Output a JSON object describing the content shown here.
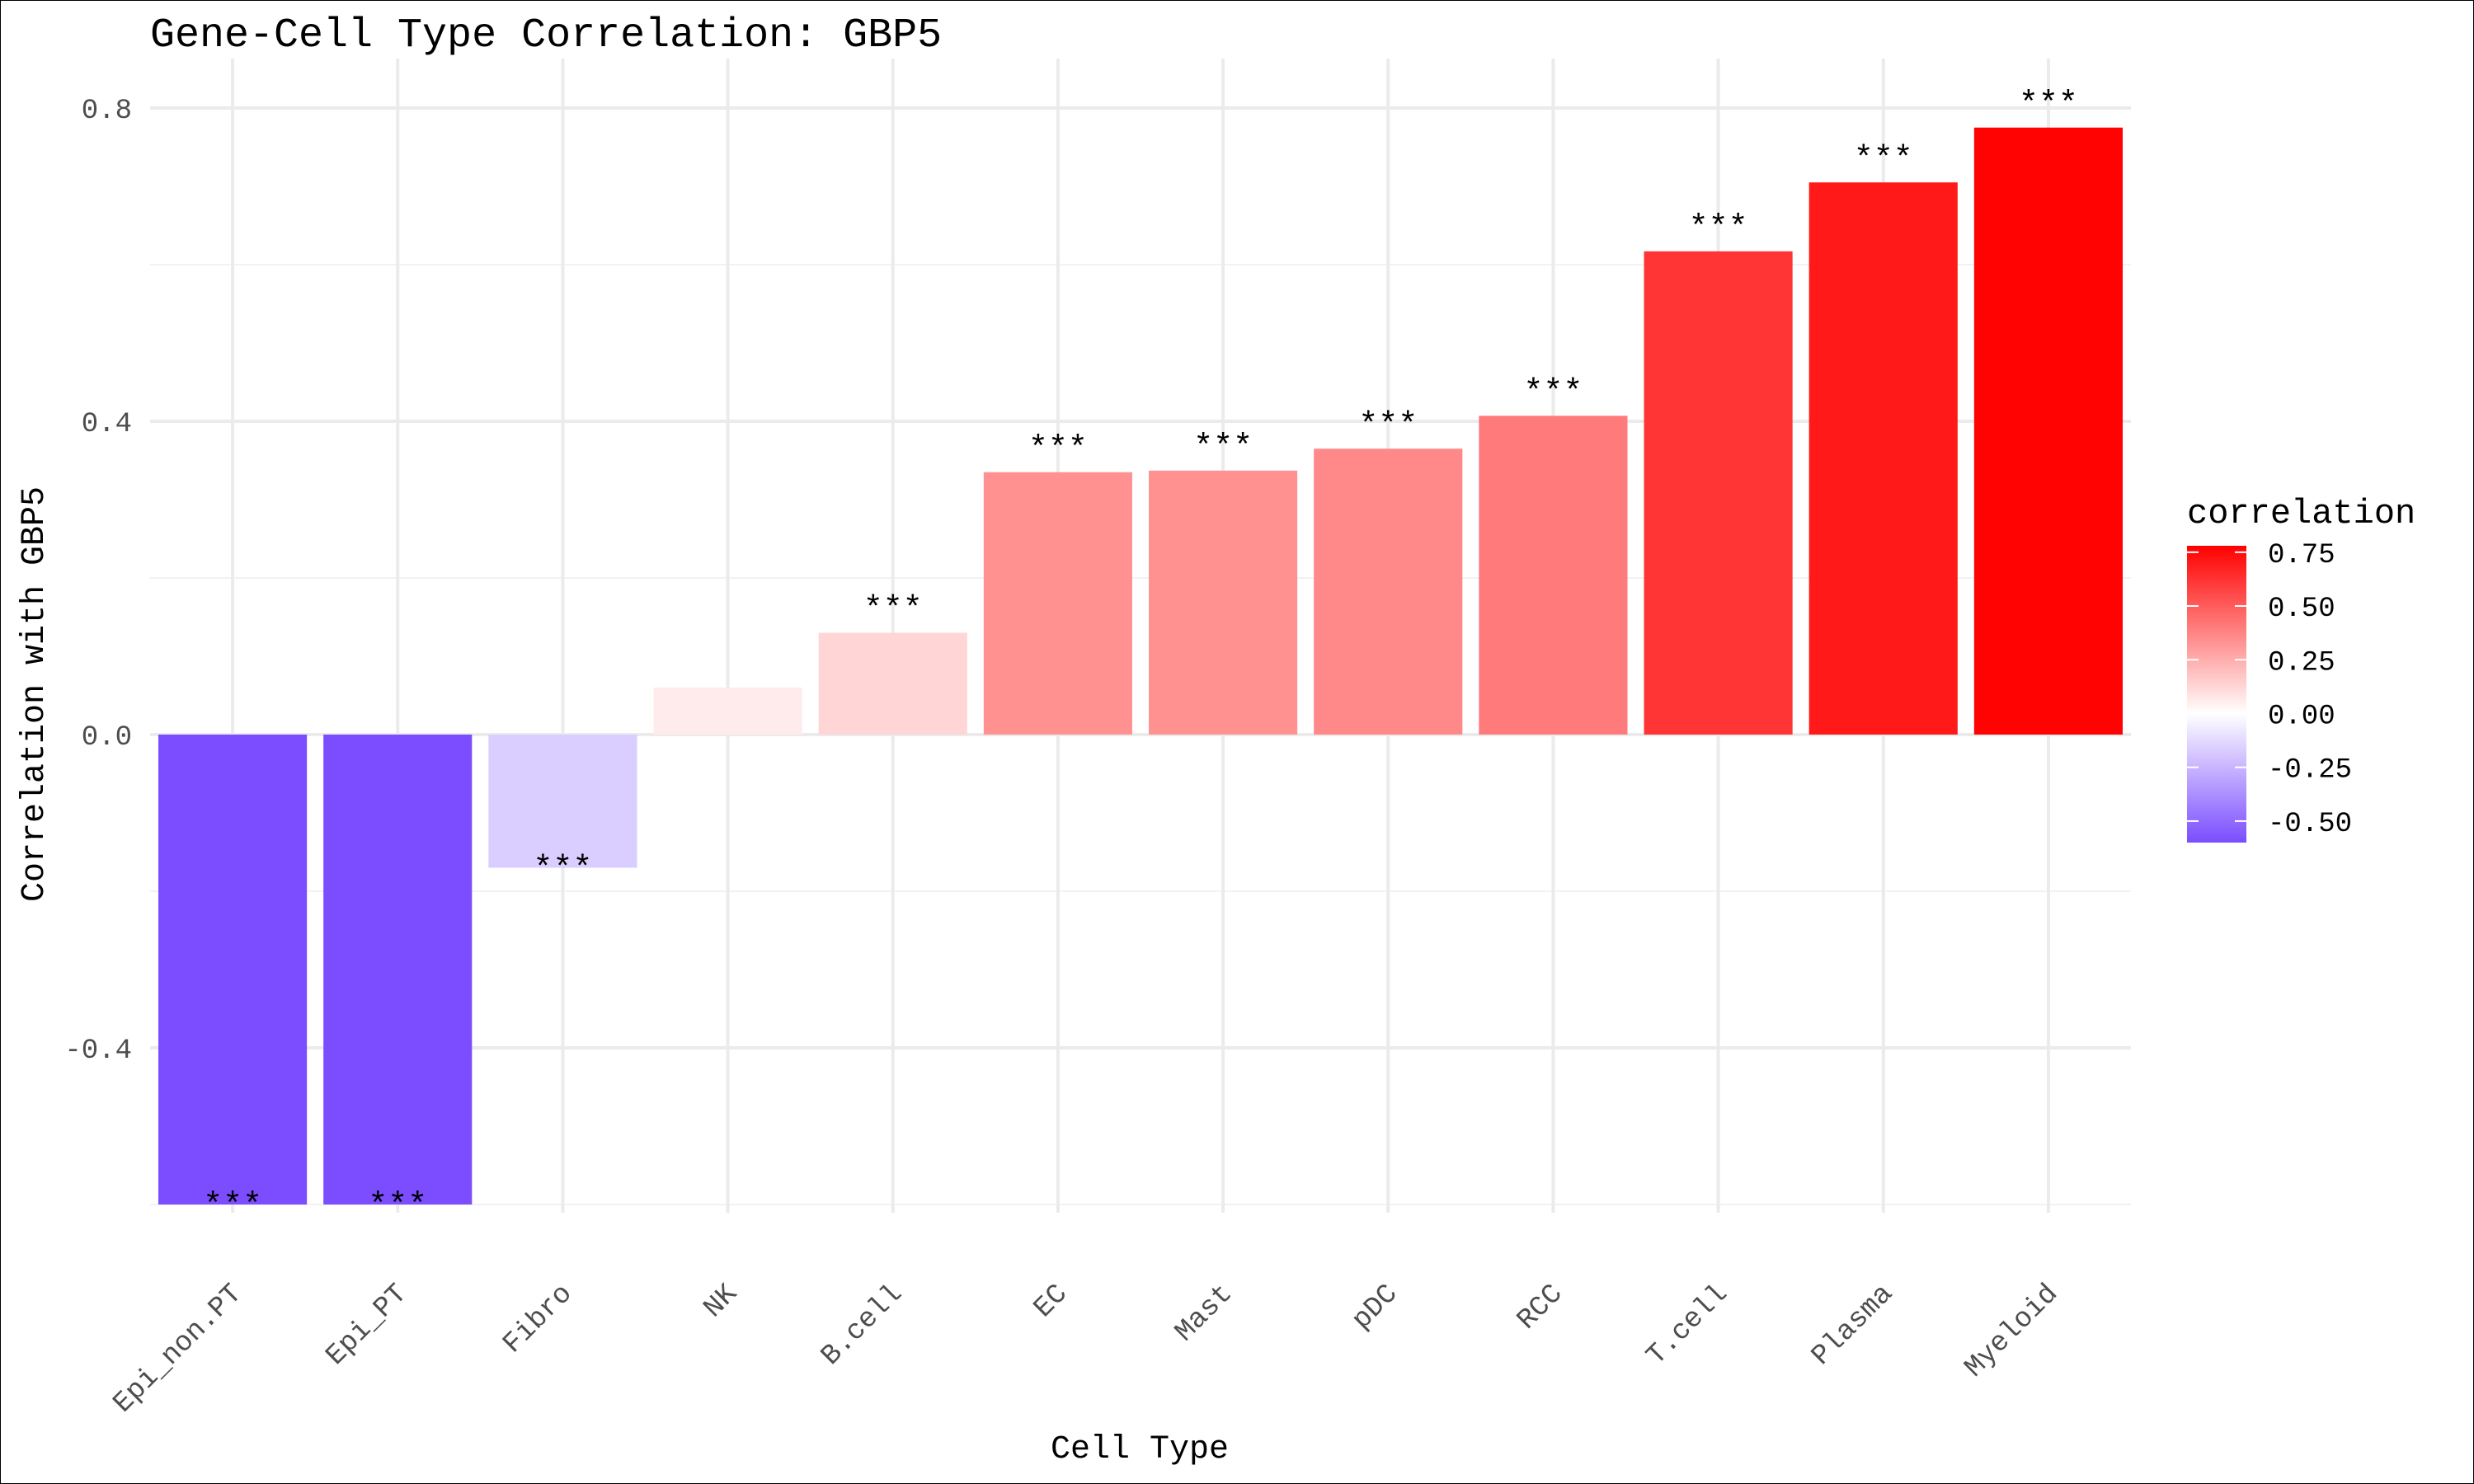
{
  "chart_data": {
    "type": "bar",
    "title": "Gene-Cell Type Correlation: GBP5",
    "xlabel": "Cell Type",
    "ylabel": "Correlation with GBP5",
    "categories": [
      "Epi_non.PT",
      "Epi_PT",
      "Fibro",
      "NK",
      "B.cell",
      "EC",
      "Mast",
      "pDC",
      "RCC",
      "T.cell",
      "Plasma",
      "Myeloid"
    ],
    "values": [
      -0.6,
      -0.6,
      -0.17,
      0.06,
      0.13,
      0.335,
      0.337,
      0.365,
      0.407,
      0.617,
      0.705,
      0.775
    ],
    "significance": [
      "***",
      "***",
      "***",
      "",
      "***",
      "***",
      "***",
      "***",
      "***",
      "***",
      "***",
      "***"
    ],
    "ylim": [
      -0.6,
      0.8
    ],
    "y_ticks": [
      -0.4,
      0.0,
      0.4,
      0.8
    ],
    "y_tick_labels": [
      "-0.4",
      "0.0",
      "0.4",
      "0.8"
    ],
    "grid": true,
    "legend": {
      "title": "correlation",
      "position": "right",
      "ticks": [
        0.75,
        0.5,
        0.25,
        0.0,
        -0.25,
        -0.5
      ],
      "tick_labels": [
        "0.75",
        "0.50",
        "0.25",
        "0.00",
        "-0.25",
        "-0.50"
      ],
      "range": [
        -0.6,
        0.78
      ]
    },
    "colors": {
      "high": "#ff0000",
      "mid": "#ffffff",
      "low": "#7b4dff"
    }
  }
}
